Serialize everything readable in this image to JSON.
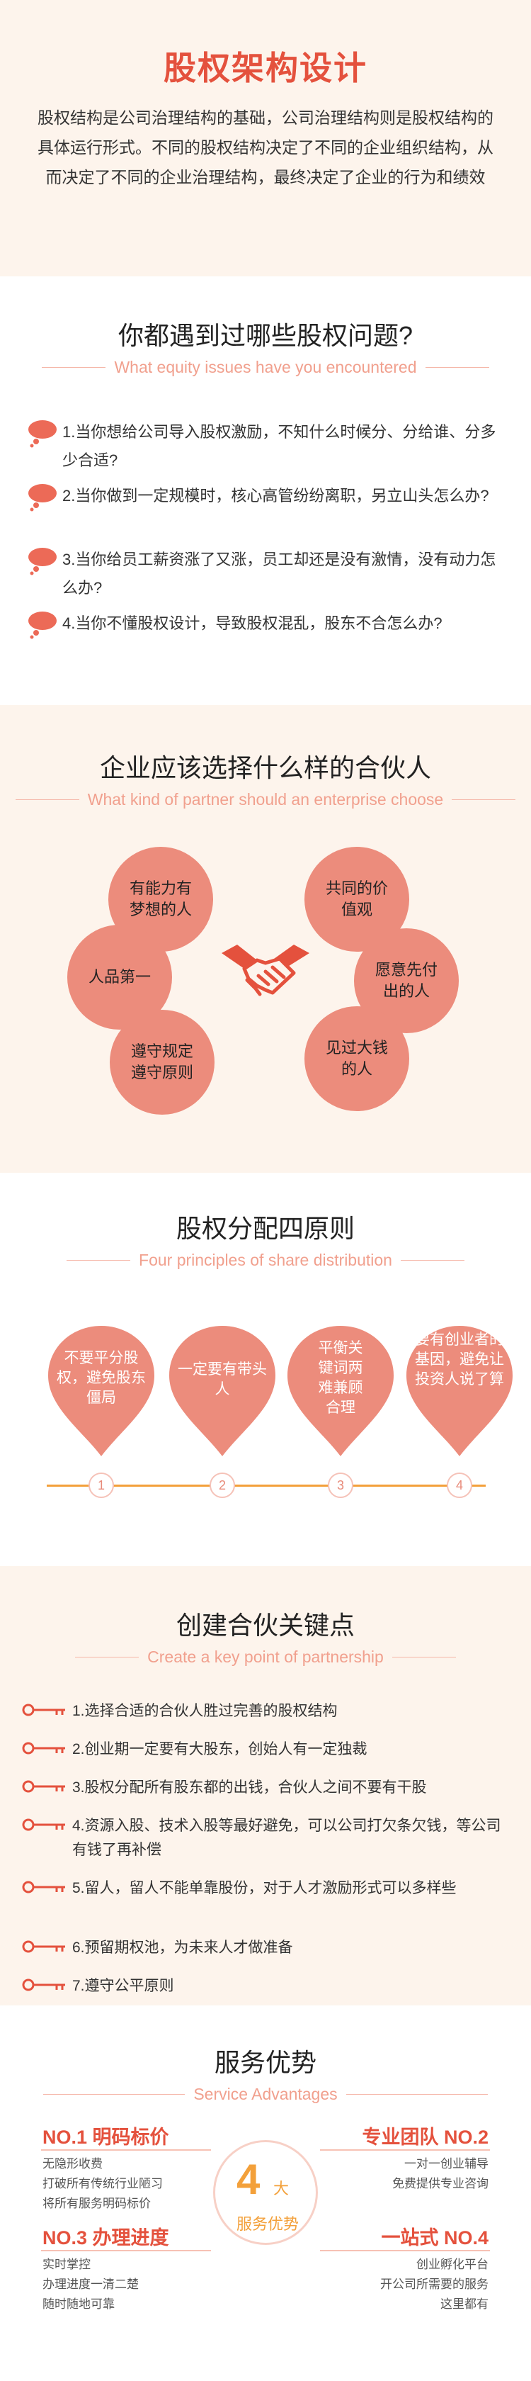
{
  "intro": {
    "title": "股权架构设计",
    "text": "股权结构是公司治理结构的基础，公司治理结构则是股权结构的具体运行形式。不同的股权结构决定了不同的企业组织结构，从而决定了不同的企业治理结构，最终决定了企业的行为和绩效"
  },
  "problems": {
    "title": "你都遇到过哪些股权问题?",
    "subtitle": "What equity issues have you encountered",
    "items": [
      "1.当你想给公司导入股权激励，不知什么时候分、分给谁、分多少合适?",
      "2.当你做到一定规模时，核心高管纷纷离职，另立山头怎么办?",
      "3.当你给员工薪资涨了又涨，员工却还是没有激情，没有动力怎么办?",
      "4.当你不懂股权设计，导致股权混乱，股东不合怎么办?"
    ]
  },
  "partners": {
    "title": "企业应该选择什么样的合伙人",
    "subtitle": "What kind of partner should an enterprise choose",
    "items": [
      "有能力有梦想的人",
      "共同的价值观",
      "人品第一",
      "愿意先付出的人",
      "遵守规定遵守原则",
      "见过大钱的人"
    ]
  },
  "principles": {
    "title": "股权分配四原则",
    "subtitle": "Four principles of share distribution",
    "items": [
      {
        "text": "不要平分股权，避免股东僵局",
        "num": "1"
      },
      {
        "text": "一定要有带头人",
        "num": "2"
      },
      {
        "text": "平衡关键词两难兼顾合理",
        "num": "3"
      },
      {
        "text": "要有创业者的基因，避免让投资人说了算",
        "num": "4"
      }
    ]
  },
  "keys": {
    "title": "创建合伙关键点",
    "subtitle": "Create a key point of partnership",
    "items": [
      "1.选择合适的合伙人胜过完善的股权结构",
      "2.创业期一定要有大股东，创始人有一定独裁",
      "3.股权分配所有股东都的出钱，合伙人之间不要有干股",
      "4.资源入股、技术入股等最好避免，可以公司打欠条欠钱，等公司有钱了再补偿",
      "5.留人，留人不能单靠股份，对于人才激励形式可以多样些",
      "6.预留期权池，为未来人才做准备",
      "7.遵守公平原则"
    ]
  },
  "advantages": {
    "title": "服务优势",
    "subtitle": "Service Advantages",
    "center_big": "4",
    "center_small": "大",
    "center_label": "服务优势",
    "blocks": [
      {
        "title": "NO.1 明码标价",
        "lines": [
          "无隐形收费",
          "打破所有传统行业陋习",
          "将所有服务明码标价"
        ]
      },
      {
        "title": "专业团队 NO.2",
        "lines": [
          "一对一创业辅导",
          "免费提供专业咨询"
        ]
      },
      {
        "title": "NO.3 办理进度",
        "lines": [
          "实时掌控",
          "办理进度一清二楚",
          "随时随地可靠"
        ]
      },
      {
        "title": "一站式 NO.4",
        "lines": [
          "创业孵化平台",
          "开公司所需要的服务",
          "这里都有"
        ]
      }
    ]
  }
}
